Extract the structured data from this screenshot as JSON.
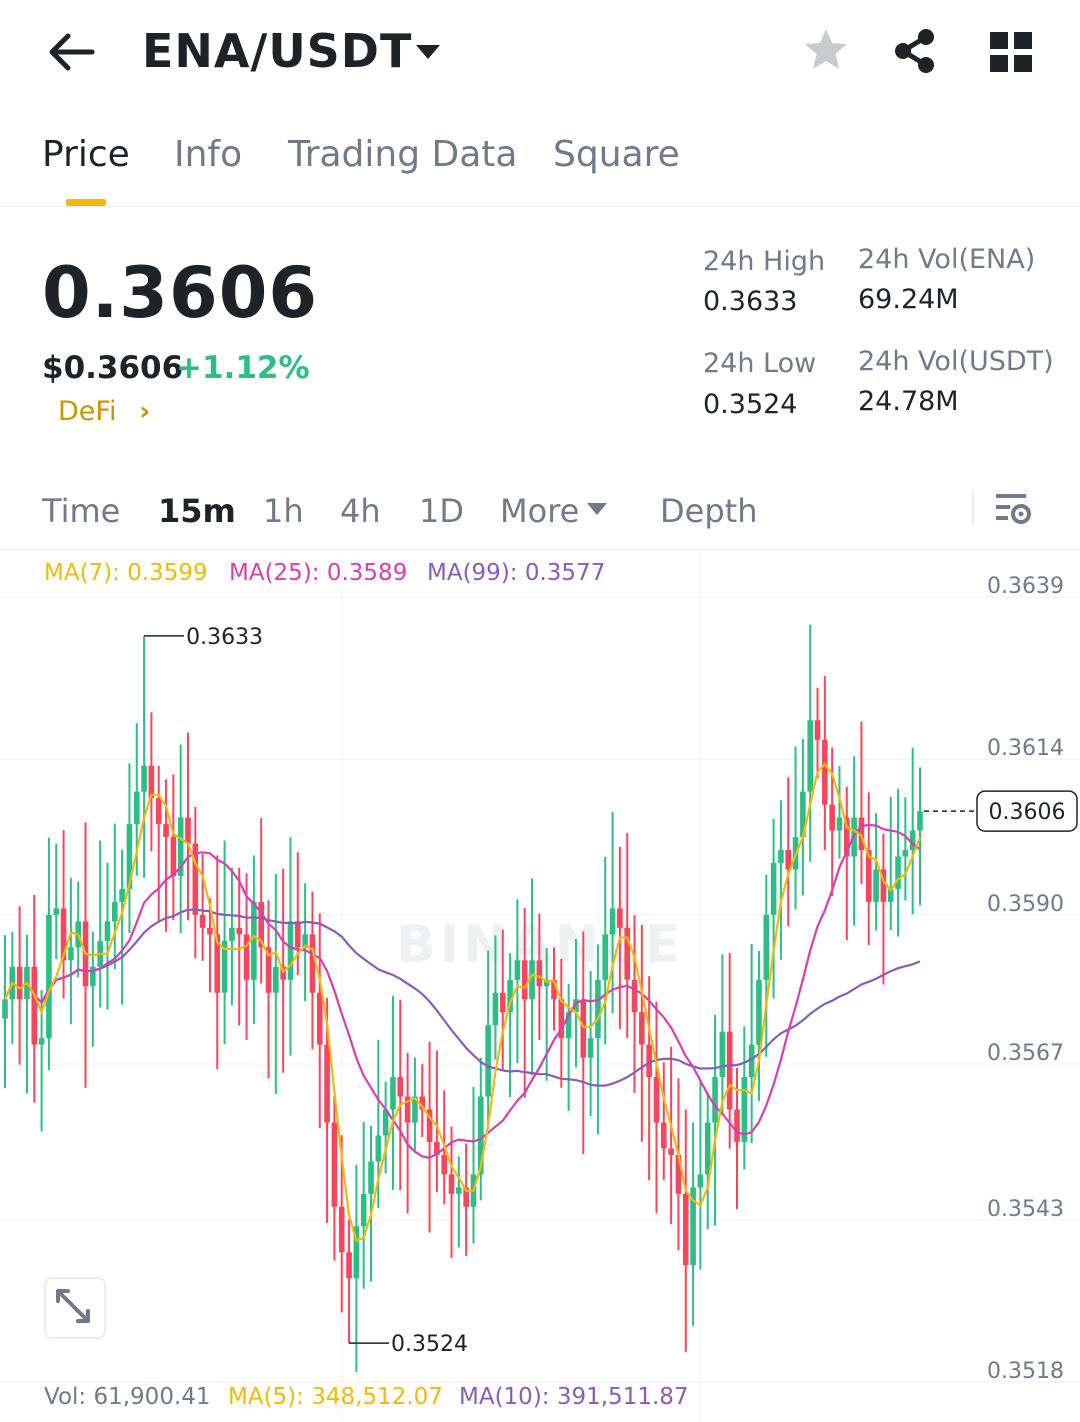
{
  "header": {
    "pair": "ENA/USDT",
    "icons": [
      "back-arrow-icon",
      "caret-down-icon",
      "star-icon",
      "share-icon",
      "grid-icon"
    ]
  },
  "tabs": [
    {
      "label": "Price",
      "active": true
    },
    {
      "label": "Info"
    },
    {
      "label": "Trading Data"
    },
    {
      "label": "Square"
    }
  ],
  "ticker": {
    "last_price": "0.3606",
    "usd_price": "$0.3606",
    "change": "+1.12%",
    "tag": "DeFi",
    "high_label": "24h High",
    "high_value": "0.3633",
    "low_label": "24h Low",
    "low_value": "0.3524",
    "vol_base_label": "24h Vol(ENA)",
    "vol_base_value": "69.24M",
    "vol_quote_label": "24h Vol(USDT)",
    "vol_quote_value": "24.78M"
  },
  "intervals": [
    "Time",
    "15m",
    "1h",
    "4h",
    "1D",
    "More",
    "Depth"
  ],
  "active_interval": "15m",
  "colors": {
    "up": "#2ebd85",
    "down": "#f6465d",
    "ma7": "#f0b90b",
    "ma25": "#d63fb4",
    "ma99": "#8b5bb8",
    "accent": "#f0b90b",
    "tag": "#c99400"
  },
  "chart_data": {
    "type": "candlestick",
    "watermark": "BINANCE",
    "ma_legend": [
      {
        "label": "MA(7): 0.3599",
        "color": "#f0b90b"
      },
      {
        "label": "MA(25): 0.3589",
        "color": "#d63fb4"
      },
      {
        "label": "MA(99): 0.3577",
        "color": "#8b5bb8"
      }
    ],
    "y_ticks": [
      "0.3639",
      "0.3614",
      "0.3590",
      "0.3567",
      "0.3543",
      "0.3518"
    ],
    "ylim": [
      0.3518,
      0.3639
    ],
    "last_price_label": "0.3606",
    "high_marker": "0.3633",
    "low_marker": "0.3524",
    "vol_legend": [
      {
        "label": "Vol: 61,900.41",
        "color": "#707a8a"
      },
      {
        "label": "MA(5): 348,512.07",
        "color": "#f0b90b"
      },
      {
        "label": "MA(10): 391,511.87",
        "color": "#8b5bb8"
      }
    ],
    "closes": [
      0.3577,
      0.3582,
      0.3577,
      0.3582,
      0.357,
      0.3571,
      0.359,
      0.3591,
      0.3583,
      0.3585,
      0.3589,
      0.3579,
      0.3582,
      0.3586,
      0.3589,
      0.3592,
      0.3594,
      0.3604,
      0.3609,
      0.3613,
      0.3608,
      0.3604,
      0.3602,
      0.3596,
      0.3605,
      0.3601,
      0.359,
      0.3588,
      0.3587,
      0.3578,
      0.3586,
      0.3588,
      0.3587,
      0.358,
      0.3592,
      0.3585,
      0.3578,
      0.3582,
      0.358,
      0.3589,
      0.3585,
      0.3587,
      0.3578,
      0.357,
      0.3558,
      0.3545,
      0.3538,
      0.3534,
      0.3542,
      0.3547,
      0.3552,
      0.3556,
      0.356,
      0.3565,
      0.3562,
      0.3558,
      0.3562,
      0.356,
      0.3555,
      0.3553,
      0.355,
      0.3547,
      0.3548,
      0.3545,
      0.355,
      0.3562,
      0.3573,
      0.3578,
      0.3575,
      0.358,
      0.3583,
      0.3577,
      0.3583,
      0.3579,
      0.358,
      0.3577,
      0.3571,
      0.3575,
      0.3577,
      0.3568,
      0.3571,
      0.358,
      0.3587,
      0.3591,
      0.3588,
      0.358,
      0.3575,
      0.357,
      0.3565,
      0.3558,
      0.3554,
      0.3553,
      0.3547,
      0.3536,
      0.3548,
      0.355,
      0.3558,
      0.3565,
      0.3572,
      0.356,
      0.3555,
      0.3565,
      0.357,
      0.358,
      0.359,
      0.3598,
      0.36,
      0.3597,
      0.3602,
      0.3609,
      0.362,
      0.3617,
      0.3607,
      0.3603,
      0.3605,
      0.3599,
      0.3605,
      0.36,
      0.3592,
      0.3597,
      0.3592,
      0.3594,
      0.3599,
      0.36,
      0.3603,
      0.3606
    ]
  }
}
